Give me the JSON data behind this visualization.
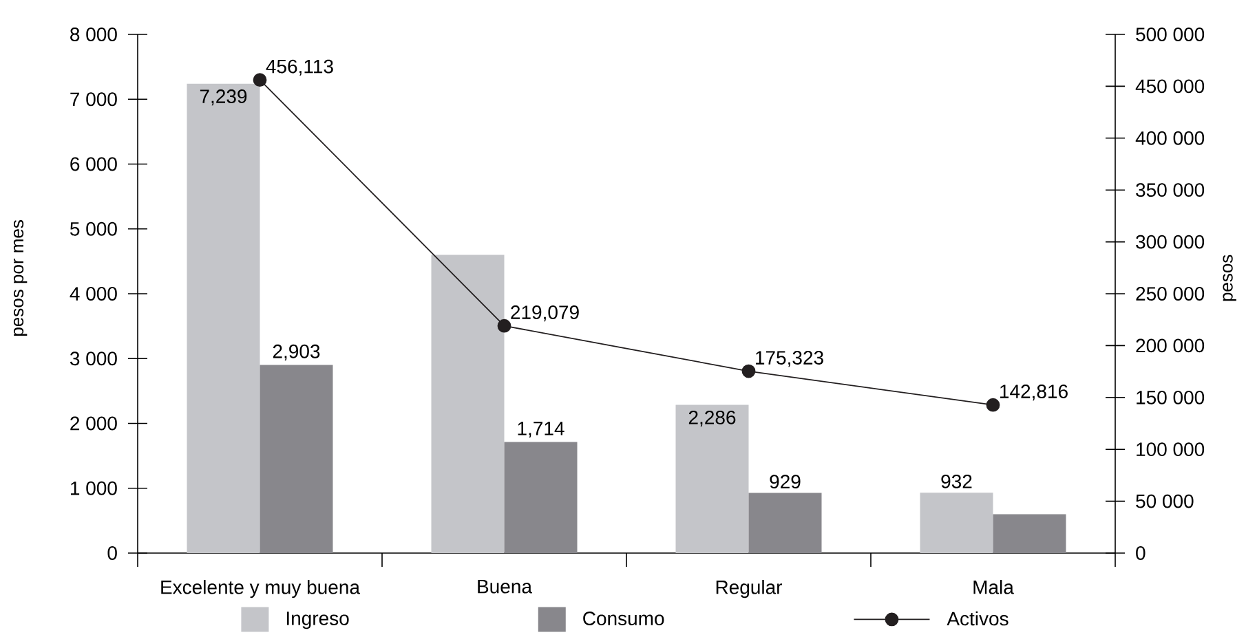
{
  "chart_data": {
    "type": "bar",
    "ylabel": "pesos por mes",
    "y2label": "pesos",
    "categories": [
      "Excelente y muy buena",
      "Buena",
      "Regular",
      "Mala"
    ],
    "series": [
      {
        "name": "Ingreso",
        "color": "#c4c5c9",
        "values": [
          7239,
          4600,
          2286,
          932
        ],
        "value_labels": [
          "7,239",
          null,
          "2,286",
          "932"
        ]
      },
      {
        "name": "Consumo",
        "color": "#88878c",
        "values": [
          2903,
          1714,
          929,
          600
        ],
        "value_labels": [
          "2,903",
          "1,714",
          "929",
          null
        ]
      },
      {
        "name": "Activos",
        "type": "line",
        "axis": "y2",
        "color": "#231f20",
        "values": [
          456113,
          219079,
          175323,
          142816
        ],
        "value_labels": [
          "456,113",
          "219,079",
          "175,323",
          "142,816"
        ]
      }
    ],
    "ylim": [
      0,
      8000
    ],
    "yticks": [
      0,
      {
        "value": 1000,
        "label": "1 000"
      },
      {
        "value": 2000,
        "label": "2 000"
      },
      {
        "value": 3000,
        "label": "3 000"
      },
      {
        "value": 4000,
        "label": "4 000"
      },
      {
        "value": 5000,
        "label": "5 000"
      },
      {
        "value": 6000,
        "label": "6 000"
      },
      {
        "value": 7000,
        "label": "7 000"
      },
      {
        "value": 8000,
        "label": "8 000"
      }
    ],
    "y2lim": [
      0,
      500000
    ],
    "y2ticks": [
      0,
      {
        "value": 50000,
        "label": "50 000"
      },
      {
        "value": 100000,
        "label": "100 000"
      },
      {
        "value": 150000,
        "label": "150 000"
      },
      {
        "value": 200000,
        "label": "200 000"
      },
      {
        "value": 250000,
        "label": "250 000"
      },
      {
        "value": 300000,
        "label": "300 000"
      },
      {
        "value": 350000,
        "label": "350 000"
      },
      {
        "value": 400000,
        "label": "400 000"
      },
      {
        "value": 450000,
        "label": "450 000"
      },
      {
        "value": 500000,
        "label": "500 000"
      }
    ],
    "marker": "circle",
    "legend": "bottom"
  }
}
